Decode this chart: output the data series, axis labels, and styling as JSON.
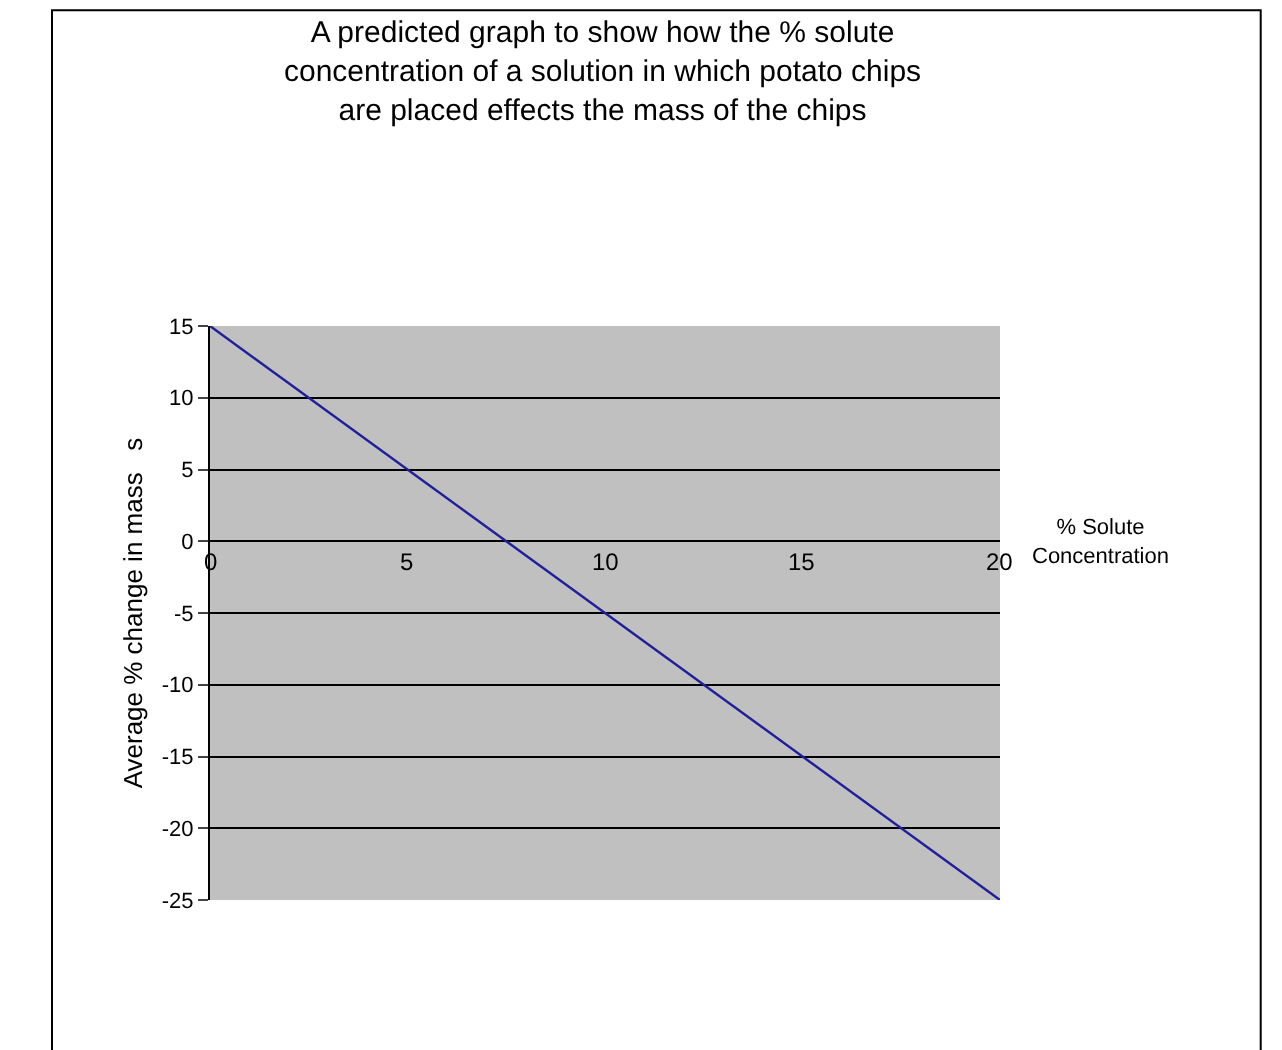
{
  "chart_data": {
    "type": "line",
    "title": "A predicted graph to show how the % solute\nconcentration of a solution in which potato chips\nare placed effects the mass of the chips",
    "xlabel": "% Solute\nConcentration",
    "ylabel": "Average % change in mass   s",
    "x": [
      0,
      20
    ],
    "series": [
      {
        "color": "#1f1f99",
        "values": [
          15,
          -25
        ]
      }
    ],
    "xlim": [
      0,
      20
    ],
    "xticks": [
      0,
      5,
      10,
      15,
      20
    ],
    "ylim": [
      -25,
      15
    ],
    "yticks": [
      15,
      10,
      5,
      0,
      -5,
      -10,
      -15,
      -20,
      -25
    ],
    "grid": "y",
    "legend": false,
    "marker": "none",
    "line_style": "solid"
  }
}
